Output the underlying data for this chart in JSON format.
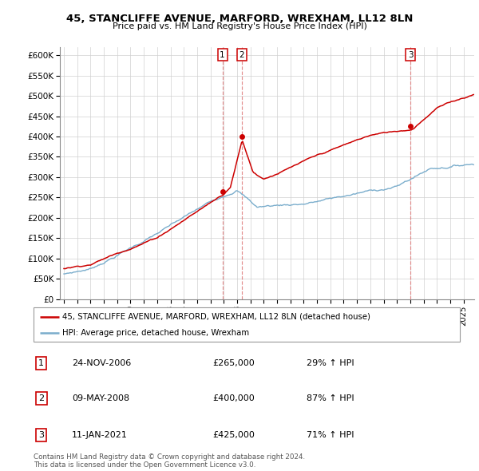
{
  "title": "45, STANCLIFFE AVENUE, MARFORD, WREXHAM, LL12 8LN",
  "subtitle": "Price paid vs. HM Land Registry's House Price Index (HPI)",
  "legend_line1": "45, STANCLIFFE AVENUE, MARFORD, WREXHAM, LL12 8LN (detached house)",
  "legend_line2": "HPI: Average price, detached house, Wrexham",
  "red_color": "#cc0000",
  "blue_color": "#7aadcc",
  "vline_color": "#cc0000",
  "table_rows": [
    {
      "num": "1",
      "date": "24-NOV-2006",
      "price": "£265,000",
      "pct": "29% ↑ HPI"
    },
    {
      "num": "2",
      "date": "09-MAY-2008",
      "price": "£400,000",
      "pct": "87% ↑ HPI"
    },
    {
      "num": "3",
      "date": "11-JAN-2021",
      "price": "£425,000",
      "pct": "71% ↑ HPI"
    }
  ],
  "footer": "Contains HM Land Registry data © Crown copyright and database right 2024.\nThis data is licensed under the Open Government Licence v3.0.",
  "ylim": [
    0,
    620000
  ],
  "yticks": [
    0,
    50000,
    100000,
    150000,
    200000,
    250000,
    300000,
    350000,
    400000,
    450000,
    500000,
    550000,
    600000
  ],
  "ytick_labels": [
    "£0",
    "£50K",
    "£100K",
    "£150K",
    "£200K",
    "£250K",
    "£300K",
    "£350K",
    "£400K",
    "£450K",
    "£500K",
    "£550K",
    "£600K"
  ],
  "vline1_x": 2006.9,
  "vline2_x": 2008.36,
  "vline3_x": 2021.03,
  "sale1_x": 2006.9,
  "sale1_y": 265000,
  "sale2_x": 2008.36,
  "sale2_y": 400000,
  "sale3_x": 2021.03,
  "sale3_y": 425000,
  "xlim_left": 1994.7,
  "xlim_right": 2025.8
}
